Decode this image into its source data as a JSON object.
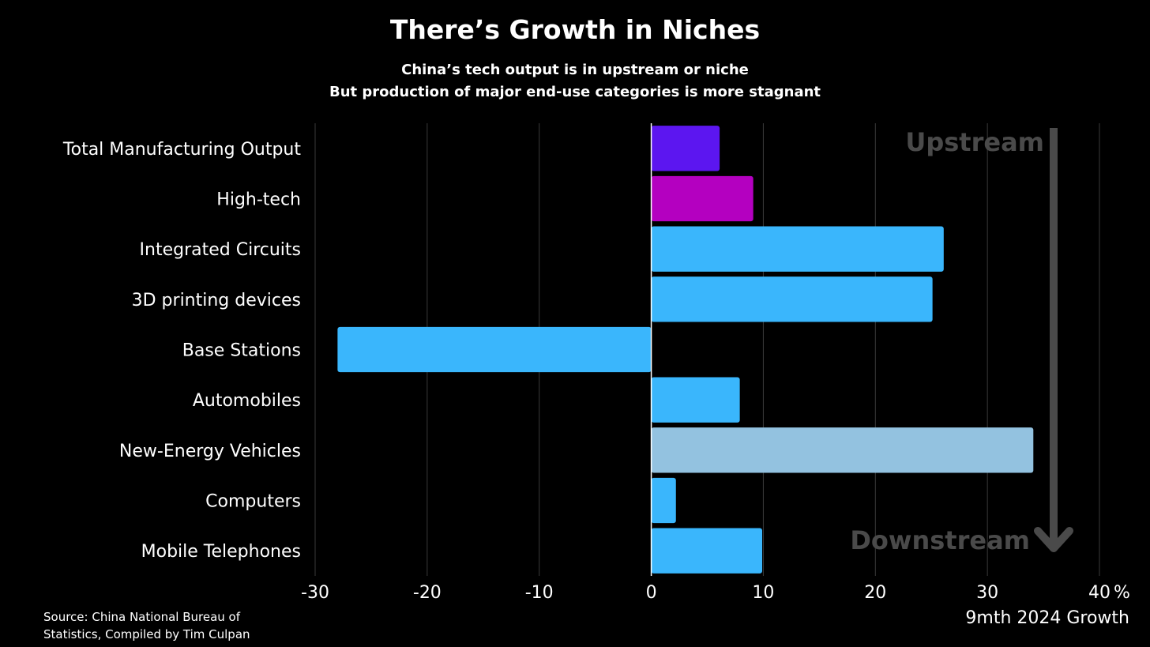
{
  "chart_data": {
    "type": "bar",
    "orientation": "horizontal",
    "title": "There’s Growth in Niches",
    "subtitle": [
      "China’s tech output is in upstream or niche",
      "But production of major end-use categories is more stagnant"
    ],
    "categories": [
      "Total Manufacturing Output",
      "High-tech",
      "Integrated Circuits",
      "3D printing devices",
      "Base Stations",
      "Automobiles",
      "New-Energy Vehicles",
      "Computers",
      "Mobile Telephones"
    ],
    "values": [
      6.1,
      9.1,
      26.1,
      25.1,
      -28.0,
      7.9,
      34.1,
      2.2,
      9.9
    ],
    "bar_colors": [
      "#5c16f0",
      "#b400c0",
      "#3ab6fc",
      "#3ab6fc",
      "#3ab6fc",
      "#3ab6fc",
      "#93c2e0",
      "#3ab6fc",
      "#3ab6fc"
    ],
    "xlim": [
      -30,
      40
    ],
    "xticks": [
      "-30",
      "-20",
      "-10",
      "0",
      "10",
      "20",
      "30",
      "40"
    ],
    "xtick_values": [
      -30,
      -20,
      -10,
      0,
      10,
      20,
      30,
      40
    ],
    "x_unit": "%",
    "xlabel": "9mth 2024 Growth",
    "grid": "vertical",
    "annotations": {
      "top": "Upstream",
      "bottom": "Downstream"
    },
    "annotation_color": "#4a4a4a"
  },
  "source": {
    "line1": "Source: China National Bureau of",
    "line2": "Statistics, Compiled by Tim Culpan"
  }
}
